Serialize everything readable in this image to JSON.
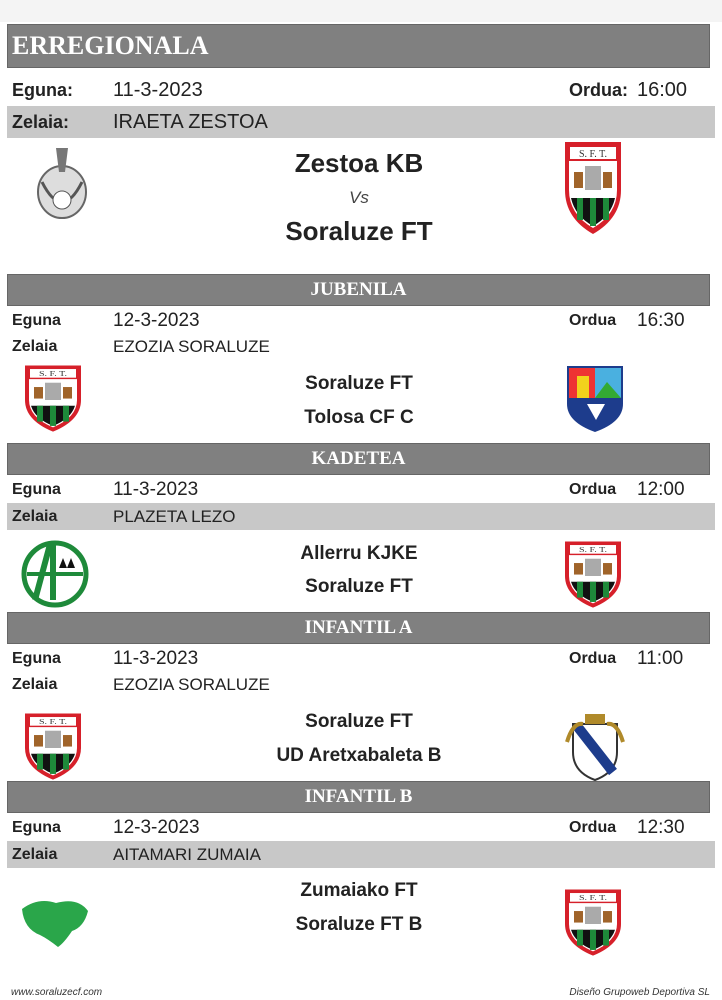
{
  "labels": {
    "day_colon": "Eguna:",
    "field_colon": "Zelaia:",
    "time_colon": "Ordua:",
    "day": "Eguna",
    "field": "Zelaia",
    "time": "Ordua",
    "vs": "Vs"
  },
  "matches": [
    {
      "category": "ERREGIONALA",
      "date": "11-3-2023",
      "time": "16:00",
      "field": "IRAETA ZESTOA",
      "home": "Zestoa KB",
      "away": "Soraluze FT"
    },
    {
      "category": "JUBENILA",
      "date": "12-3-2023",
      "time": "16:30",
      "field": "EZOZIA SORALUZE",
      "home": "Soraluze FT",
      "away": "Tolosa CF C"
    },
    {
      "category": "KADETEA",
      "date": "11-3-2023",
      "time": "12:00",
      "field": "PLAZETA LEZO",
      "home": "Allerru KJKE",
      "away": "Soraluze FT"
    },
    {
      "category": "INFANTIL A",
      "date": "11-3-2023",
      "time": "11:00",
      "field": "EZOZIA SORALUZE",
      "home": "Soraluze FT",
      "away": "UD Aretxabaleta B"
    },
    {
      "category": "INFANTIL B",
      "date": "12-3-2023",
      "time": "12:30",
      "field": "AITAMARI ZUMAIA",
      "home": "Zumaiako FT",
      "away": "Soraluze FT B"
    }
  ],
  "crest_text": "S. F. T.",
  "footer": {
    "left": "www.soraluzecf.com",
    "right": "Diseño Grupoweb Deportiva SL"
  },
  "colors": {
    "header_bg": "#808080",
    "row_gray": "#c8c8c8",
    "sft_red": "#d6202a",
    "sft_green": "#1e8a3a"
  }
}
